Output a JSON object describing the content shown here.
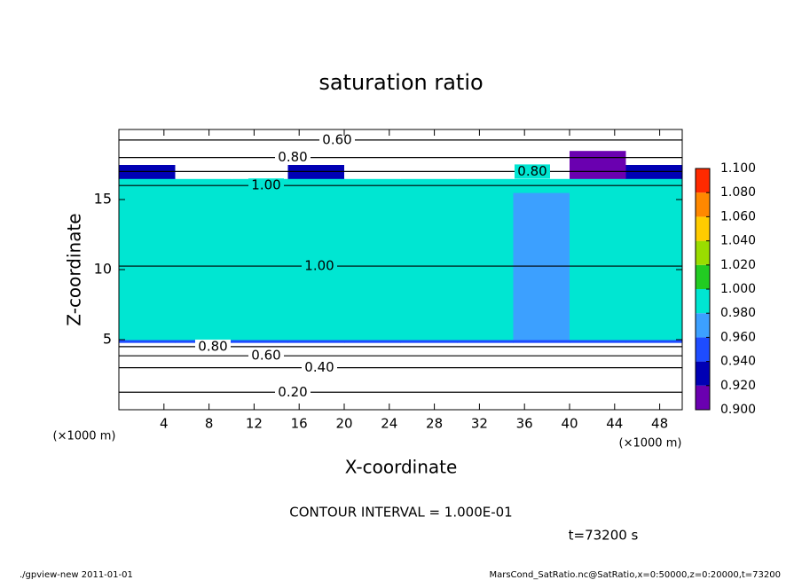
{
  "chart_data": {
    "type": "heatmap",
    "title": "saturation ratio",
    "x_label": "X-coordinate",
    "y_label": "Z-coordinate",
    "x_unit": "(×1000 m)",
    "xlim": [
      0,
      50
    ],
    "ylim": [
      0,
      20
    ],
    "xticks": [
      4,
      8,
      12,
      16,
      20,
      24,
      28,
      32,
      36,
      40,
      44,
      48
    ],
    "yticks": [
      5,
      10,
      15
    ],
    "x_edges": [
      0,
      5,
      10,
      15,
      20,
      25,
      30,
      35,
      40,
      45,
      50
    ],
    "y_edges": [
      0,
      2.5,
      3.5,
      4.2,
      4.8,
      5,
      15.5,
      16.5,
      17.5,
      18.5,
      20
    ],
    "values": [
      [
        0.2,
        0.2,
        0.2,
        0.2,
        0.2,
        0.2,
        0.2,
        0.2,
        0.2,
        0.2
      ],
      [
        0.4,
        0.4,
        0.4,
        0.4,
        0.4,
        0.4,
        0.4,
        0.4,
        0.4,
        0.4
      ],
      [
        0.6,
        0.6,
        0.6,
        0.6,
        0.6,
        0.6,
        0.6,
        0.6,
        0.6,
        0.6
      ],
      [
        0.8,
        0.8,
        0.8,
        0.8,
        0.8,
        0.8,
        0.8,
        0.8,
        0.8,
        0.8
      ],
      [
        0.96,
        0.96,
        0.96,
        0.96,
        0.96,
        0.96,
        0.96,
        0.95,
        0.96,
        0.96
      ],
      [
        1.0,
        1.0,
        1.0,
        1.0,
        1.0,
        1.0,
        0.99,
        0.98,
        0.99,
        1.0
      ],
      [
        1.0,
        1.0,
        1.0,
        0.99,
        1.0,
        1.0,
        1.0,
        1.0,
        1.0,
        1.0
      ],
      [
        0.94,
        0.8,
        0.8,
        0.94,
        0.8,
        0.8,
        0.8,
        0.8,
        0.92,
        0.94
      ],
      [
        0.8,
        0.8,
        0.8,
        0.8,
        0.8,
        0.8,
        0.8,
        0.8,
        0.91,
        0.8
      ],
      [
        0.6,
        0.6,
        0.6,
        0.6,
        0.6,
        0.6,
        0.6,
        0.6,
        0.6,
        0.6
      ]
    ],
    "colorbar_ticks": [
      {
        "value": 0.9,
        "label": "0.900"
      },
      {
        "value": 0.92,
        "label": "0.920"
      },
      {
        "value": 0.94,
        "label": "0.940"
      },
      {
        "value": 0.96,
        "label": "0.960"
      },
      {
        "value": 0.98,
        "label": "0.980"
      },
      {
        "value": 1.0,
        "label": "1.000"
      },
      {
        "value": 1.02,
        "label": "1.020"
      },
      {
        "value": 1.04,
        "label": "1.040"
      },
      {
        "value": 1.06,
        "label": "1.060"
      },
      {
        "value": 1.08,
        "label": "1.080"
      },
      {
        "value": 1.1,
        "label": "1.100"
      }
    ],
    "colors": [
      "#6a00b0",
      "#0000b4",
      "#1e4cff",
      "#3ca0ff",
      "#00e6d2",
      "#22cc22",
      "#9add00",
      "#ffcc00",
      "#ff8800",
      "#ff2a00"
    ],
    "contour_labels": [
      {
        "value": 0.2,
        "label": "0.20"
      },
      {
        "value": 0.4,
        "label": "0.40"
      },
      {
        "value": 0.6,
        "label": "0.60"
      },
      {
        "value": 0.8,
        "label": "0.80"
      },
      {
        "value": 1.0,
        "label": "1.00"
      }
    ],
    "contour_interval": "CONTOUR INTERVAL = 1.000E-01",
    "time_label": "t=73200 s",
    "footer_left": "./gpview-new  2011-01-01",
    "footer_right": "MarsCond_SatRatio.nc@SatRatio,x=0:50000,z=0:20000,t=73200"
  }
}
